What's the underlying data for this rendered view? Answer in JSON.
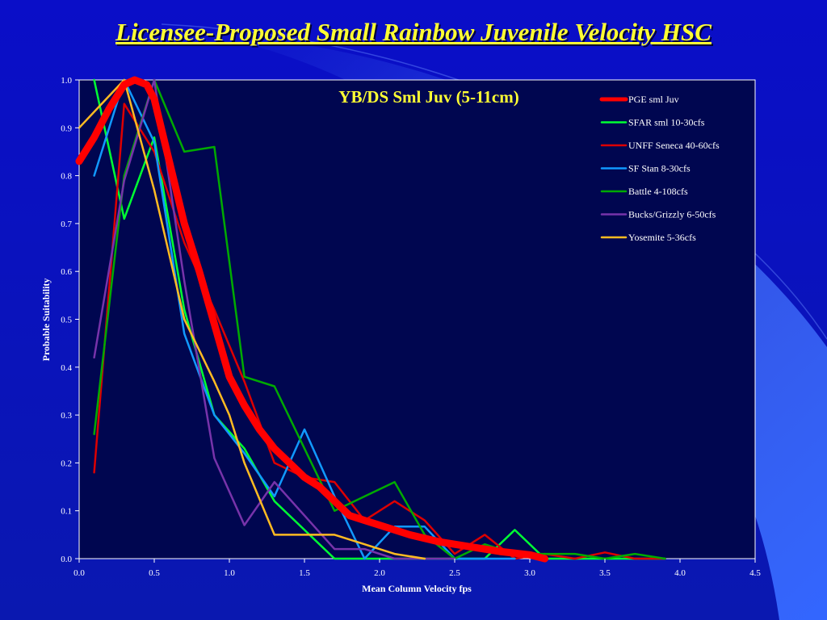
{
  "slide": {
    "title": "Licensee-Proposed Small Rainbow Juvenile Velocity HSC"
  },
  "colors": {
    "background": "#0a14c8",
    "plot_area": "#000650",
    "title": "#ffff33"
  },
  "chart_data": {
    "type": "line",
    "title": "YB/DS Sml Juv (5-11cm)",
    "xlabel": "Mean Column Velocity fps",
    "ylabel": "Probable Suitability",
    "xlim": [
      0,
      4.5
    ],
    "ylim": [
      0,
      1.0
    ],
    "x_ticks": [
      "0.0",
      "0.5",
      "1.0",
      "1.5",
      "2.0",
      "2.5",
      "3.0",
      "3.5",
      "4.0",
      "4.5"
    ],
    "y_ticks": [
      "0.0",
      "0.1",
      "0.2",
      "0.3",
      "0.4",
      "0.5",
      "0.6",
      "0.7",
      "0.8",
      "0.9",
      "1.0"
    ],
    "grid": false,
    "legend_position": "top-right",
    "series": [
      {
        "name": "PGE sml Juv",
        "color": "#ff0000",
        "width": 9,
        "x": [
          0.0,
          0.1,
          0.2,
          0.3,
          0.37,
          0.45,
          0.5,
          0.6,
          0.7,
          0.8,
          0.9,
          1.0,
          1.1,
          1.2,
          1.3,
          1.4,
          1.5,
          1.6,
          1.7,
          1.8,
          1.9,
          2.0,
          2.2,
          2.4,
          2.6,
          2.8,
          3.0,
          3.1
        ],
        "y": [
          0.83,
          0.88,
          0.94,
          0.99,
          1.0,
          0.99,
          0.96,
          0.83,
          0.7,
          0.6,
          0.49,
          0.38,
          0.32,
          0.27,
          0.23,
          0.2,
          0.17,
          0.15,
          0.12,
          0.09,
          0.08,
          0.07,
          0.05,
          0.035,
          0.025,
          0.015,
          0.008,
          0.0
        ]
      },
      {
        "name": "SFAR sml 10-30cfs",
        "color": "#00ff33",
        "width": 2.5,
        "x": [
          0.1,
          0.3,
          0.5,
          0.7,
          0.9,
          1.1,
          1.3,
          1.5,
          1.7,
          1.9,
          2.1,
          2.3,
          2.5,
          2.7,
          2.9,
          3.1,
          3.3,
          3.5,
          3.7,
          3.9
        ],
        "y": [
          1.0,
          0.71,
          0.88,
          0.52,
          0.3,
          0.23,
          0.12,
          0.06,
          0.0,
          0.0,
          0.0,
          0.0,
          0.0,
          0.0,
          0.06,
          0.0,
          0.0,
          0.0,
          0.0,
          0.0
        ]
      },
      {
        "name": "UNFF Seneca 40-60cfs",
        "color": "#dd0000",
        "width": 2.5,
        "x": [
          0.1,
          0.3,
          0.5,
          0.7,
          0.9,
          1.1,
          1.3,
          1.5,
          1.7,
          1.9,
          2.1,
          2.3,
          2.5,
          2.7,
          2.9,
          3.1,
          3.3,
          3.5,
          3.7,
          3.9
        ],
        "y": [
          0.18,
          0.95,
          0.85,
          0.66,
          0.52,
          0.37,
          0.2,
          0.17,
          0.16,
          0.08,
          0.12,
          0.08,
          0.01,
          0.05,
          0.0,
          0.01,
          0.0,
          0.013,
          0.0,
          0.0
        ]
      },
      {
        "name": "SF Stan 8-30cfs",
        "color": "#1199ff",
        "width": 2.5,
        "x": [
          0.1,
          0.3,
          0.5,
          0.7,
          0.9,
          1.1,
          1.3,
          1.5,
          1.7,
          1.9,
          2.1,
          2.3,
          2.5,
          2.7,
          2.9
        ],
        "y": [
          0.8,
          1.0,
          0.87,
          0.47,
          0.3,
          0.22,
          0.13,
          0.27,
          0.13,
          0.0,
          0.067,
          0.067,
          0.0,
          0.0,
          0.0
        ]
      },
      {
        "name": "Battle 4-108cfs",
        "color": "#00aa00",
        "width": 2.5,
        "x": [
          0.1,
          0.3,
          0.5,
          0.7,
          0.9,
          1.1,
          1.3,
          1.5,
          1.7,
          1.9,
          2.1,
          2.3,
          2.5,
          2.7,
          2.9,
          3.1,
          3.3,
          3.5,
          3.7,
          3.9
        ],
        "y": [
          0.26,
          0.8,
          1.0,
          0.85,
          0.86,
          0.38,
          0.36,
          0.23,
          0.1,
          0.13,
          0.16,
          0.05,
          0.0,
          0.03,
          0.01,
          0.01,
          0.01,
          0.0,
          0.01,
          0.0
        ]
      },
      {
        "name": "Bucks/Grizzly 6-50cfs",
        "color": "#7733aa",
        "width": 2.5,
        "x": [
          0.1,
          0.3,
          0.5,
          0.7,
          0.9,
          1.1,
          1.3,
          1.5,
          1.7,
          1.9,
          2.1,
          2.3,
          2.5
        ],
        "y": [
          0.42,
          0.79,
          1.0,
          0.58,
          0.21,
          0.07,
          0.16,
          0.09,
          0.02,
          0.02,
          0.0,
          0.0,
          0.0
        ]
      },
      {
        "name": "Yosemite 5-36cfs",
        "color": "#ffbb22",
        "width": 2.5,
        "x": [
          0.0,
          0.3,
          0.5,
          0.7,
          0.9,
          1.0,
          1.1,
          1.3,
          1.5,
          1.7,
          1.9,
          2.1,
          2.3
        ],
        "y": [
          0.9,
          1.0,
          0.77,
          0.5,
          0.37,
          0.3,
          0.2,
          0.05,
          0.05,
          0.05,
          0.03,
          0.01,
          0.0
        ]
      }
    ]
  }
}
